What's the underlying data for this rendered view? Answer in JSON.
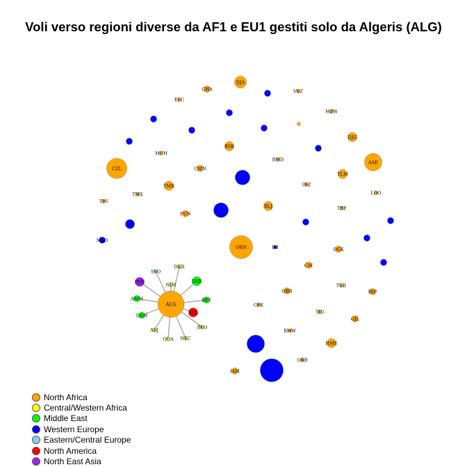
{
  "chart_data": {
    "type": "network",
    "title": "Voli verso regioni diverse da AF1 e EU1 gestiti solo da Algeris (ALG)",
    "legend": {
      "position": "bottom-left",
      "entries": [
        {
          "label": "North Africa",
          "color": "#FFA500"
        },
        {
          "label": "Central/Western Africa",
          "color": "#FFFF00"
        },
        {
          "label": "Middle East",
          "color": "#00FF00"
        },
        {
          "label": "Western Europe",
          "color": "#0000FF"
        },
        {
          "label": "Eastern/Central Europe",
          "color": "#87CEEB"
        },
        {
          "label": "North America",
          "color": "#FF0000"
        },
        {
          "label": "North East Asia",
          "color": "#A020F0"
        }
      ]
    },
    "hub": {
      "label": "ALG",
      "region": "North Africa",
      "size": 9
    },
    "hub_links": [
      {
        "label": "SVO",
        "region": "Eastern/Central Europe",
        "size": 0
      },
      {
        "label": "DKR",
        "region": "Central/Western Africa",
        "size": 0
      },
      {
        "label": "PEK",
        "region": "North East Asia",
        "size": 2
      },
      {
        "label": "NIM",
        "region": "Central/Western Africa",
        "size": 0
      },
      {
        "label": "DXB",
        "region": "Middle East",
        "size": 2
      },
      {
        "label": "AMM",
        "region": "Middle East",
        "size": 1
      },
      {
        "label": "BEY",
        "region": "Middle East",
        "size": 1
      },
      {
        "label": "DAM",
        "region": "Middle East",
        "size": 1
      },
      {
        "label": "YUL",
        "region": "North America",
        "size": 2
      },
      {
        "label": "BKO",
        "region": "Central/Western Africa",
        "size": 0
      },
      {
        "label": "ABJ",
        "region": "Central/Western Africa",
        "size": 0
      },
      {
        "label": "OUA",
        "region": "Central/Western Africa",
        "size": 0
      },
      {
        "label": "NKC",
        "region": "Central/Western Africa",
        "size": 0
      }
    ],
    "isolated_nodes": [
      {
        "label": "DJA",
        "region": "North Africa",
        "size": 3
      },
      {
        "label": "GHA",
        "region": "North Africa",
        "size": 1
      },
      {
        "label": "",
        "region": "Western Europe",
        "size": 1
      },
      {
        "label": "VVZ",
        "region": "North Africa",
        "size": 0
      },
      {
        "label": "ELU",
        "region": "North Africa",
        "size": 0
      },
      {
        "label": "",
        "region": "Western Europe",
        "size": 1
      },
      {
        "label": "MZW",
        "region": "North Africa",
        "size": 0
      },
      {
        "label": "",
        "region": "North Africa",
        "size": 0
      },
      {
        "label": "",
        "region": "Western Europe",
        "size": 1
      },
      {
        "label": "",
        "region": "Western Europe",
        "size": 1
      },
      {
        "label": "",
        "region": "Western Europe",
        "size": 1
      },
      {
        "label": "DJG",
        "region": "North Africa",
        "size": 2
      },
      {
        "label": "",
        "region": "Western Europe",
        "size": 1
      },
      {
        "label": "BSK",
        "region": "North Africa",
        "size": 2
      },
      {
        "label": "",
        "region": "Western Europe",
        "size": 1
      },
      {
        "label": "MUH",
        "region": "North Africa",
        "size": 0
      },
      {
        "label": "BMD",
        "region": "North Africa",
        "size": 0
      },
      {
        "label": "AAE",
        "region": "North Africa",
        "size": 5
      },
      {
        "label": "CZL",
        "region": "North Africa",
        "size": 6
      },
      {
        "label": "CMN",
        "region": "North Africa",
        "size": 1
      },
      {
        "label": "TLM",
        "region": "North Africa",
        "size": 2
      },
      {
        "label": "",
        "region": "Western Europe",
        "size": 4
      },
      {
        "label": "TMR",
        "region": "North Africa",
        "size": 2
      },
      {
        "label": "INZ",
        "region": "North Africa",
        "size": 0
      },
      {
        "label": "TMX",
        "region": "North Africa",
        "size": 0
      },
      {
        "label": "LOO",
        "region": "North Africa",
        "size": 0
      },
      {
        "label": "TIN",
        "region": "North Africa",
        "size": 0
      },
      {
        "label": "BLJ",
        "region": "North Africa",
        "size": 2
      },
      {
        "label": "FUN",
        "region": "North Africa",
        "size": 1
      },
      {
        "label": "",
        "region": "Western Europe",
        "size": 4
      },
      {
        "label": "TEE",
        "region": "North Africa",
        "size": 0
      },
      {
        "label": "",
        "region": "Western Europe",
        "size": 1
      },
      {
        "label": "",
        "region": "Western Europe",
        "size": 1
      },
      {
        "label": "",
        "region": "Western Europe",
        "size": 2
      },
      {
        "label": "MAD",
        "region": "Western Europe",
        "size": 1
      },
      {
        "label": "",
        "region": "Western Europe",
        "size": 1
      },
      {
        "label": "ORN",
        "region": "North Africa",
        "size": 7
      },
      {
        "label": "IAI",
        "region": "Western Europe",
        "size": 0
      },
      {
        "label": "OGX",
        "region": "North Africa",
        "size": 1
      },
      {
        "label": "",
        "region": "Western Europe",
        "size": 1
      },
      {
        "label": "CAI",
        "region": "North Africa",
        "size": 1
      },
      {
        "label": "OBB",
        "region": "North Africa",
        "size": 1
      },
      {
        "label": "TGR",
        "region": "North Africa",
        "size": 0
      },
      {
        "label": "HIP",
        "region": "North Africa",
        "size": 1
      },
      {
        "label": "CFK",
        "region": "North Africa",
        "size": 0
      },
      {
        "label": "TID",
        "region": "North Africa",
        "size": 0
      },
      {
        "label": "GJL",
        "region": "North Africa",
        "size": 1
      },
      {
        "label": "BMW",
        "region": "North Africa",
        "size": 0
      },
      {
        "label": "",
        "region": "Western Europe",
        "size": 5
      },
      {
        "label": "HME",
        "region": "North Africa",
        "size": 2
      },
      {
        "label": "",
        "region": "Western Europe",
        "size": 7
      },
      {
        "label": "ORB",
        "region": "North Africa",
        "size": 0
      },
      {
        "label": "IAM",
        "region": "North Africa",
        "size": 1
      },
      {
        "label": "QSF",
        "region": "North Africa",
        "size": 3
      },
      {
        "label": "",
        "region": "Western Europe",
        "size": 1
      }
    ]
  }
}
